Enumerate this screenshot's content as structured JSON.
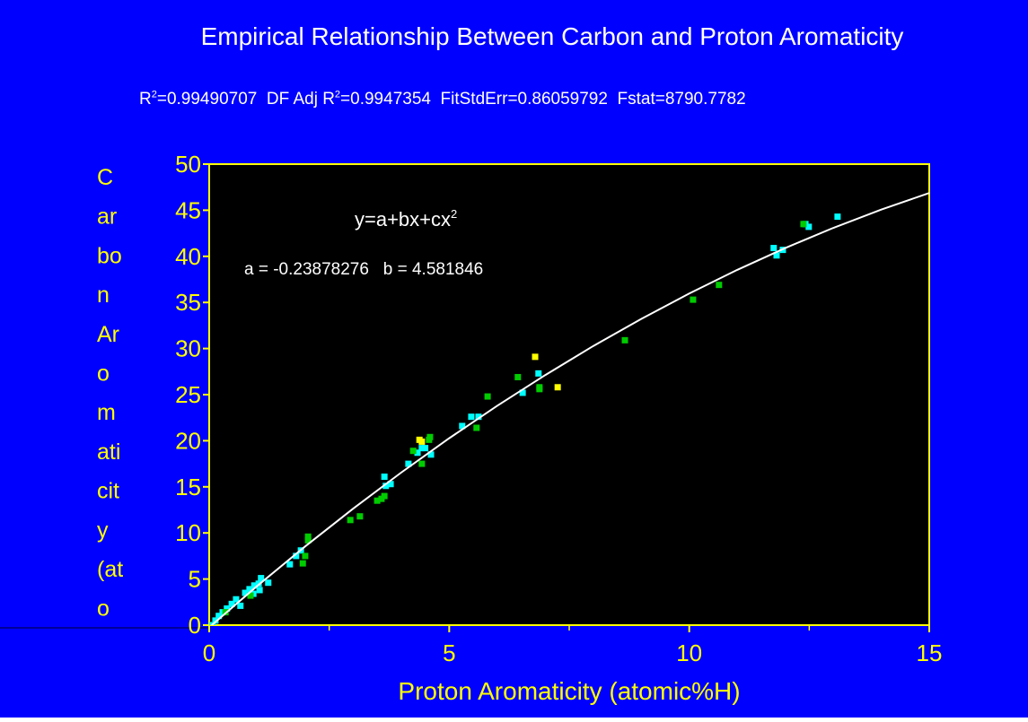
{
  "chart_data": {
    "type": "scatter",
    "title": "Empirical Relationship Between Carbon and Proton Aromaticity",
    "subtitle_parts": [
      "R",
      "2",
      "=0.99490707  DF Adj R",
      "2",
      "=0.9947354  FitStdErr=0.86059792  Fstat=8790.7782"
    ],
    "equation_parts": [
      "y=a+bx+cx",
      "2"
    ],
    "coefficients": "a = -0.23878276   b = 4.581846",
    "x_label": "Proton Aromaticity (atomic%H)",
    "y_label_lines": [
      "C",
      "ar",
      "bo",
      "n",
      "Ar",
      "o",
      "m",
      "ati",
      "cit",
      "y",
      "(at",
      "o"
    ],
    "xlim": [
      0,
      15
    ],
    "ylim": [
      0,
      50
    ],
    "xticks": [
      0,
      5,
      10,
      15
    ],
    "xminor": [
      2.5,
      7.5,
      12.5
    ],
    "yticks": [
      0,
      5,
      10,
      15,
      20,
      25,
      30,
      35,
      40,
      45,
      50
    ],
    "background": "#0000ff",
    "plot_background": "#000000",
    "axis_color": "#ffff00",
    "series": [
      {
        "color": "#00ffff",
        "x": [
          0.07,
          0.13,
          0.2,
          0.28,
          0.37,
          0.47,
          0.56,
          0.65,
          0.75,
          0.84,
          0.92,
          0.94,
          1.03,
          1.05,
          1.08,
          1.23,
          1.68,
          1.81,
          1.91,
          3.65,
          3.68,
          3.78,
          4.15,
          4.34,
          4.43,
          4.5,
          4.62,
          5.27,
          5.46,
          5.61,
          6.53,
          6.86,
          11.76,
          11.82,
          11.95,
          12.42,
          12.49,
          13.09
        ],
        "values": [
          0,
          0.5,
          1.0,
          1.4,
          1.8,
          2.3,
          2.8,
          2.1,
          3.5,
          3.9,
          3.4,
          4.3,
          4.5,
          3.8,
          5.1,
          4.6,
          6.6,
          7.5,
          8.1,
          16.1,
          15.1,
          15.3,
          17.5,
          18.7,
          19.2,
          19.2,
          18.5,
          21.6,
          22.6,
          22.6,
          25.2,
          27.3,
          40.9,
          40.1,
          40.7,
          43.5,
          43.2,
          44.3
        ]
      },
      {
        "color": "#00cc00",
        "x": [
          0.34,
          0.86,
          1.95,
          2.0,
          2.06,
          2.06,
          2.94,
          3.14,
          3.5,
          3.59,
          3.65,
          4.25,
          4.43,
          4.58,
          4.6,
          5.57,
          5.8,
          6.43,
          6.88,
          6.88,
          8.66,
          10.08,
          10.62,
          12.38
        ],
        "values": [
          1.4,
          3.2,
          6.7,
          7.5,
          9.2,
          9.6,
          11.4,
          11.8,
          13.5,
          13.7,
          14.0,
          18.9,
          17.5,
          20.1,
          20.4,
          21.4,
          24.8,
          26.9,
          25.8,
          25.6,
          30.9,
          35.3,
          36.9,
          43.5
        ]
      },
      {
        "color": "#ffff00",
        "x": [
          4.38,
          4.43,
          6.79,
          7.26
        ],
        "values": [
          20.1,
          19.9,
          29.1,
          25.8
        ]
      },
      {
        "type": "line",
        "color": "#ffffff",
        "x": [
          0,
          1,
          2,
          3,
          4,
          5,
          6,
          7,
          8,
          9,
          10,
          11,
          12,
          13,
          14,
          15
        ],
        "values": [
          -0.24,
          4.25,
          8.54,
          12.64,
          16.55,
          20.27,
          23.79,
          27.12,
          30.27,
          33.21,
          35.97,
          38.53,
          40.9,
          43.08,
          45.07,
          46.87
        ]
      }
    ]
  }
}
